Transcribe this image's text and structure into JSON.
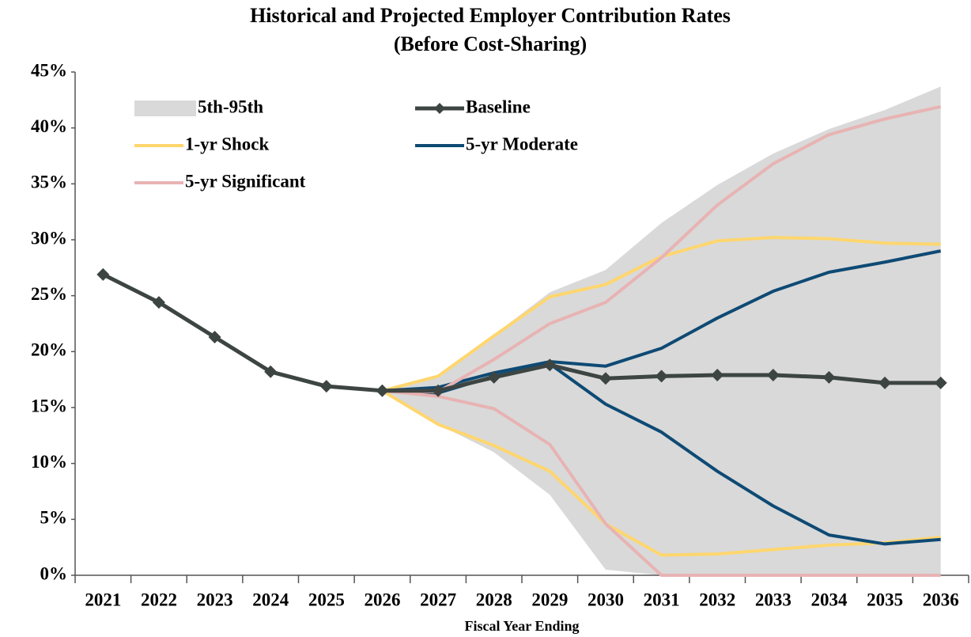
{
  "chart_data": {
    "type": "line",
    "title": "Historical and Projected Employer Contribution Rates",
    "subtitle": "(Before Cost-Sharing)",
    "x_label": "Fiscal Year Ending",
    "categories": [
      "2021",
      "2022",
      "2023",
      "2024",
      "2025",
      "2026",
      "2027",
      "2028",
      "2029",
      "2030",
      "2031",
      "2032",
      "2033",
      "2034",
      "2035",
      "2036"
    ],
    "ylim": [
      0,
      45
    ],
    "yticks": [
      {
        "value": 0,
        "label": "0%"
      },
      {
        "value": 5,
        "label": "5%"
      },
      {
        "value": 10,
        "label": "10%"
      },
      {
        "value": 15,
        "label": "15%"
      },
      {
        "value": 20,
        "label": "20%"
      },
      {
        "value": 25,
        "label": "25%"
      },
      {
        "value": 30,
        "label": "30%"
      },
      {
        "value": 35,
        "label": "35%"
      },
      {
        "value": 40,
        "label": "40%"
      },
      {
        "value": 45,
        "label": "45%"
      }
    ],
    "band": {
      "name": "5th-95th",
      "color": "#d9d9d9",
      "upper": [
        null,
        null,
        null,
        null,
        null,
        16.5,
        17.8,
        21.5,
        25.3,
        27.3,
        31.5,
        34.9,
        37.7,
        39.9,
        41.6,
        43.7
      ],
      "lower": [
        null,
        null,
        null,
        null,
        null,
        16.5,
        13.5,
        11.0,
        7.2,
        0.5,
        0,
        0,
        0,
        0,
        0,
        0
      ]
    },
    "series": [
      {
        "name": "Baseline",
        "color": "#3d4543",
        "markers": true,
        "values": [
          26.9,
          24.4,
          21.3,
          18.2,
          16.9,
          16.5,
          16.5,
          17.7,
          18.8,
          17.6,
          17.8,
          17.9,
          17.9,
          17.7,
          17.2,
          17.2
        ]
      },
      {
        "name": "1-yr Shock",
        "color": "#ffd66e",
        "high": [
          null,
          null,
          null,
          null,
          null,
          16.5,
          17.8,
          21.4,
          24.9,
          26.0,
          28.5,
          29.9,
          30.2,
          30.1,
          29.7,
          29.6
        ],
        "low": [
          null,
          null,
          null,
          null,
          null,
          16.5,
          13.5,
          11.6,
          9.3,
          4.6,
          1.8,
          1.9,
          2.3,
          2.7,
          2.9,
          3.4
        ]
      },
      {
        "name": "5-yr Moderate",
        "color": "#0e4a74",
        "high": [
          null,
          null,
          null,
          null,
          null,
          16.5,
          16.8,
          18.1,
          19.1,
          18.7,
          20.3,
          23.0,
          25.4,
          27.1,
          28.0,
          29.0
        ],
        "low": [
          null,
          null,
          null,
          null,
          null,
          16.5,
          16.3,
          17.8,
          18.9,
          15.3,
          12.8,
          9.3,
          6.2,
          3.6,
          2.8,
          3.2
        ]
      },
      {
        "name": "5-yr Significant",
        "color": "#e8b3b3",
        "high": [
          null,
          null,
          null,
          null,
          null,
          16.5,
          16.4,
          19.3,
          22.5,
          24.4,
          28.4,
          33.1,
          36.8,
          39.4,
          40.8,
          41.9
        ],
        "low": [
          null,
          null,
          null,
          null,
          null,
          16.5,
          16.0,
          14.9,
          11.7,
          4.6,
          0,
          0,
          0,
          0,
          0,
          0
        ]
      }
    ]
  }
}
